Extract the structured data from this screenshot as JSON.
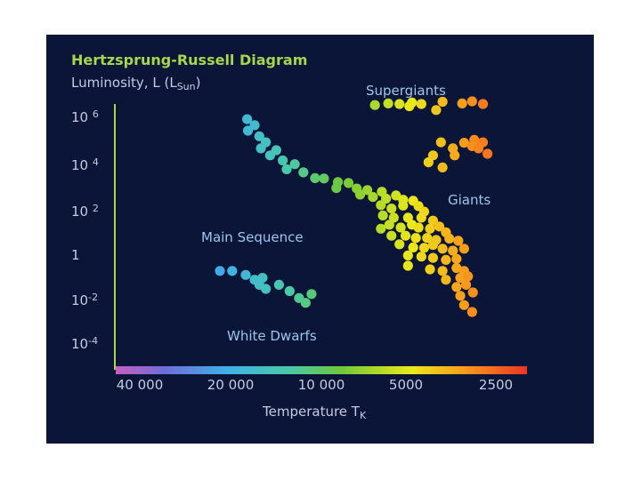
{
  "chart_data": {
    "type": "scatter",
    "title": "Hertzsprung-Russell Diagram",
    "ylabel": {
      "main": "Luminosity, L (L",
      "sub": "Sun",
      "tail": ")"
    },
    "xlabel": {
      "main": "Temperature T",
      "sub": "K"
    },
    "x_scale": "log-reversed",
    "y_scale": "log",
    "y_ticks": [
      {
        "base": "10",
        "exp": "6",
        "value": 1000000
      },
      {
        "base": "10",
        "exp": "4",
        "value": 10000
      },
      {
        "base": "10",
        "exp": "2",
        "value": 100
      },
      {
        "base": "1",
        "exp": "",
        "value": 1
      },
      {
        "base": "10",
        "exp": "-2",
        "value": 0.01
      },
      {
        "base": "10",
        "exp": "-4",
        "value": 0.0001
      }
    ],
    "x_ticks": [
      {
        "label": "40 000",
        "value": 40000
      },
      {
        "label": "20 000",
        "value": 20000
      },
      {
        "label": "10 000",
        "value": 10000
      },
      {
        "label": "5000",
        "value": 5000
      },
      {
        "label": "2500",
        "value": 2500
      }
    ],
    "annotations": [
      "Supergiants",
      "Giants",
      "Main Sequence",
      "White Dwarfs"
    ],
    "series": [
      {
        "group": "Main Sequence",
        "points": [
          [
            17800,
            220000
          ],
          [
            16800,
            120000
          ],
          [
            17700,
            70000
          ],
          [
            16200,
            40000
          ],
          [
            15400,
            22000
          ],
          [
            16000,
            12000
          ],
          [
            14200,
            10000
          ],
          [
            14900,
            6000
          ],
          [
            13500,
            3600
          ],
          [
            12300,
            2500
          ],
          [
            13100,
            1500
          ],
          [
            11500,
            1100
          ],
          [
            10500,
            620
          ],
          [
            9800,
            600
          ],
          [
            8800,
            420
          ],
          [
            8900,
            230
          ],
          [
            8100,
            380
          ],
          [
            7600,
            220
          ],
          [
            7000,
            190
          ],
          [
            7400,
            120
          ],
          [
            6700,
            95
          ],
          [
            6250,
            160
          ],
          [
            6050,
            80
          ],
          [
            5600,
            110
          ],
          [
            5300,
            72
          ],
          [
            6300,
            42
          ],
          [
            5800,
            30
          ],
          [
            5300,
            40
          ],
          [
            4900,
            65
          ],
          [
            4700,
            38
          ],
          [
            4500,
            22
          ],
          [
            6200,
            15
          ],
          [
            5700,
            12
          ],
          [
            5100,
            12
          ],
          [
            4600,
            12
          ],
          [
            4200,
            9
          ],
          [
            6300,
            4
          ],
          [
            5900,
            6
          ],
          [
            5400,
            4.5
          ],
          [
            4950,
            6
          ],
          [
            4700,
            4.5
          ],
          [
            4300,
            4
          ],
          [
            4000,
            5
          ],
          [
            3800,
            2.8
          ],
          [
            5800,
            2
          ],
          [
            5200,
            2
          ],
          [
            4800,
            1.6
          ],
          [
            4400,
            1.6
          ],
          [
            4100,
            1.3
          ],
          [
            3700,
            1.5
          ],
          [
            3450,
            1.2
          ],
          [
            5450,
            0.85
          ],
          [
            4900,
            0.62
          ],
          [
            4500,
            0.6
          ],
          [
            4200,
            0.8
          ],
          [
            3900,
            0.55
          ],
          [
            3600,
            0.45
          ],
          [
            3300,
            0.55
          ],
          [
            5100,
            0.28
          ],
          [
            4600,
            0.25
          ],
          [
            4200,
            0.22
          ],
          [
            3800,
            0.18
          ],
          [
            3500,
            0.2
          ],
          [
            5100,
            0.1
          ],
          [
            4300,
            0.07
          ],
          [
            3900,
            0.06
          ],
          [
            3500,
            0.08
          ],
          [
            3300,
            0.06
          ],
          [
            3800,
            0.025
          ],
          [
            3400,
            0.03
          ],
          [
            3200,
            0.035
          ],
          [
            3500,
            0.012
          ],
          [
            3250,
            0.015
          ],
          [
            3400,
            0.005
          ],
          [
            3080,
            0.007
          ],
          [
            3300,
            0.002
          ],
          [
            3100,
            0.001
          ]
        ]
      },
      {
        "group": "Supergiants",
        "points": [
          [
            6600,
            900000
          ],
          [
            5950,
            1050000
          ],
          [
            5450,
            1000000
          ],
          [
            4950,
            1150000
          ],
          [
            4600,
            1000000
          ],
          [
            5050,
            800000
          ],
          [
            3900,
            1250000
          ],
          [
            3350,
            1050000
          ],
          [
            3100,
            1300000
          ],
          [
            2850,
            1000000
          ],
          [
            4100,
            550000
          ]
        ]
      },
      {
        "group": "Giants",
        "points": [
          [
            3950,
            22000
          ],
          [
            3300,
            21000
          ],
          [
            3050,
            28000
          ],
          [
            2850,
            22000
          ],
          [
            3100,
            15000
          ],
          [
            2950,
            12000
          ],
          [
            3600,
            12000
          ],
          [
            4200,
            6000
          ],
          [
            3550,
            6000
          ],
          [
            4350,
            3000
          ],
          [
            3900,
            1800
          ],
          [
            2750,
            7000
          ]
        ]
      },
      {
        "group": "White Dwarfs",
        "points": [
          [
            22000,
            0.06
          ],
          [
            20000,
            0.06
          ],
          [
            18000,
            0.04
          ],
          [
            16800,
            0.025
          ],
          [
            15800,
            0.03
          ],
          [
            16200,
            0.015
          ],
          [
            15400,
            0.01
          ],
          [
            13900,
            0.015
          ],
          [
            12800,
            0.008
          ],
          [
            11900,
            0.004
          ],
          [
            11300,
            0.0025
          ],
          [
            10800,
            0.006
          ]
        ]
      }
    ]
  }
}
